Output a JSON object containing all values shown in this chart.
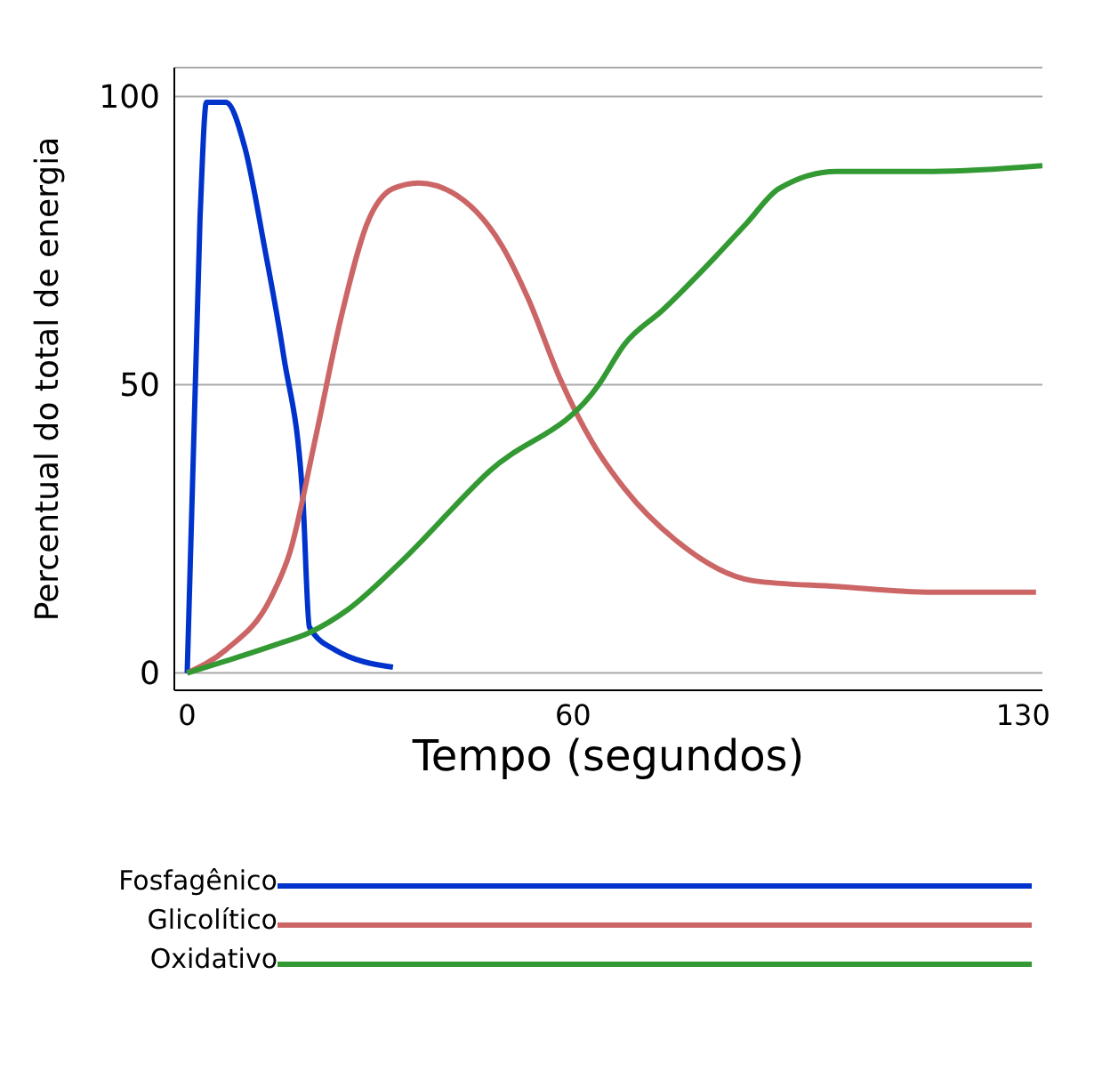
{
  "chart_data": {
    "type": "line",
    "xlabel": "Tempo (segundos)",
    "ylabel": "Percentual do total de energia",
    "xlim": [
      -2,
      133
    ],
    "ylim": [
      -3,
      105
    ],
    "xticks": [
      0,
      60,
      130
    ],
    "yticks": [
      0,
      50,
      100
    ],
    "grid": "y",
    "legend": "bottom",
    "marker": "none",
    "line_style": "solid",
    "series": [
      {
        "name": "Fosfagênico",
        "color": "#0033cc",
        "x": [
          0,
          2,
          3,
          6,
          9,
          12,
          15,
          18,
          19,
          23,
          32
        ],
        "values": [
          0,
          79,
          99,
          99,
          91,
          74,
          55,
          30,
          8,
          4,
          1
        ]
      },
      {
        "name": "Glicolítico",
        "color": "#cc6666",
        "x": [
          0,
          6,
          13,
          16,
          20,
          24,
          28,
          32,
          36,
          43,
          49,
          53,
          58,
          63,
          68,
          76,
          88,
          101,
          116,
          132
        ],
        "values": [
          0,
          4,
          13,
          21,
          41,
          62,
          78,
          84,
          85,
          82,
          74,
          65,
          51,
          40,
          32,
          23,
          16,
          15,
          14,
          14
        ]
      },
      {
        "name": "Oxidativo",
        "color": "#339933",
        "x": [
          0,
          14,
          19,
          25,
          33,
          47,
          64,
          68,
          74,
          82,
          87,
          92,
          101,
          116,
          133
        ],
        "values": [
          0,
          5,
          7,
          11,
          19,
          35,
          50,
          57,
          63,
          72,
          78,
          84,
          87,
          87,
          88
        ]
      }
    ]
  }
}
